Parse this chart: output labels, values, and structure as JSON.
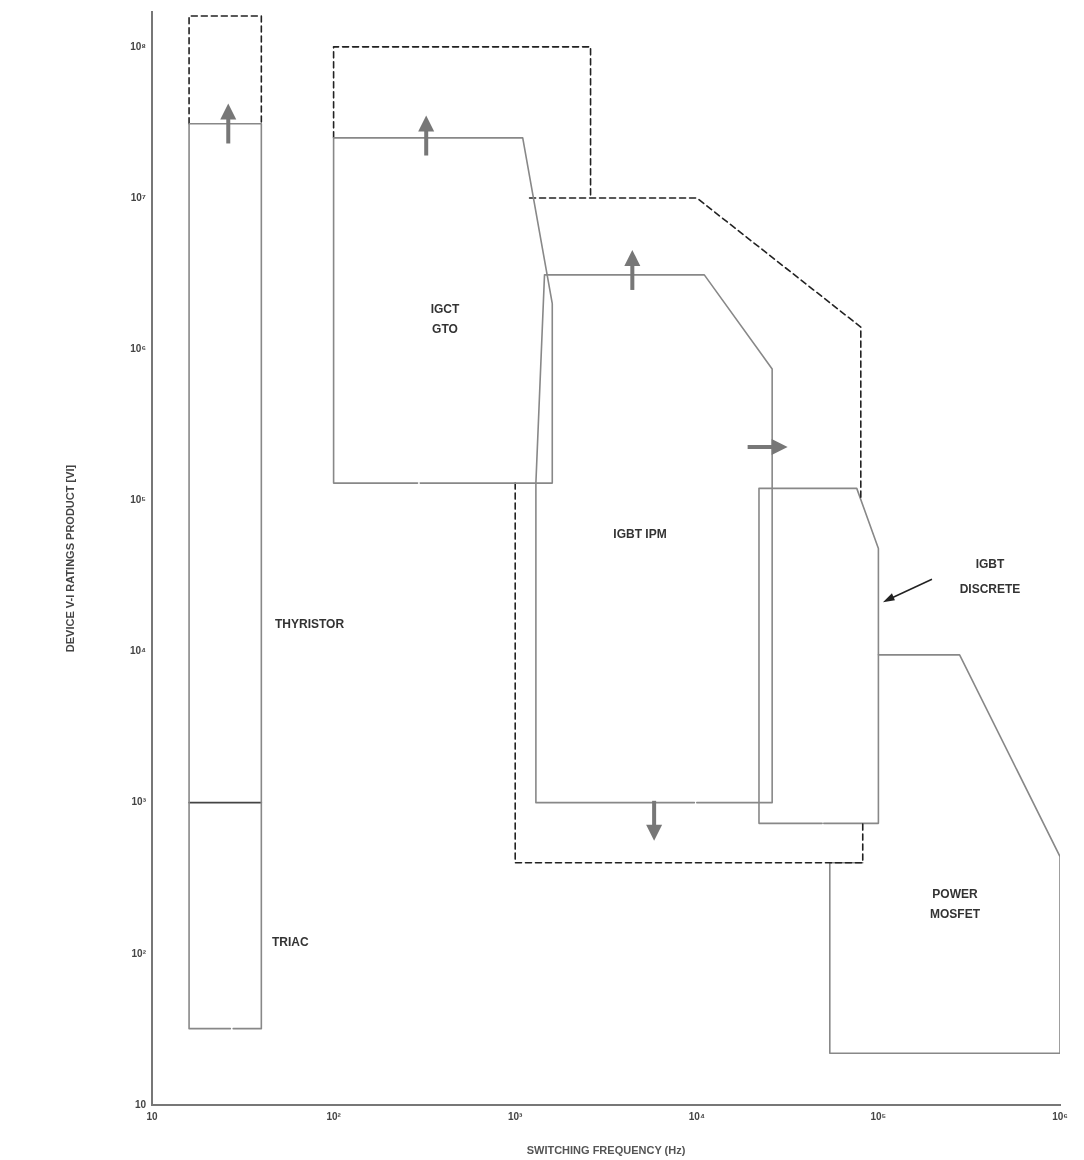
{
  "chart_data": {
    "type": "line",
    "xlabel": "SWITCHING FREQUENCY (Hz)",
    "ylabel": "DEVICE V-I RATINGS PRODUCT [VI]",
    "log": "xy",
    "grid": false,
    "legend": false,
    "marker": "none",
    "xlim": [
      10,
      1000000
    ],
    "ylim": [
      10,
      170000000
    ],
    "xticks": [
      10,
      {
        "value": 100,
        "label": "10²"
      },
      {
        "value": 1000,
        "label": "10³"
      },
      {
        "value": 10000,
        "label": "10⁴"
      },
      {
        "value": 100000,
        "label": "10⁵"
      },
      {
        "value": 1000000,
        "label": "10⁶"
      }
    ],
    "yticks": [
      10,
      {
        "value": 100,
        "label": "10²"
      },
      {
        "value": 1000,
        "label": "10³"
      },
      {
        "value": 10000,
        "label": "10⁴"
      },
      {
        "value": 100000,
        "label": "10⁵"
      },
      {
        "value": 1000000,
        "label": "10⁶"
      },
      {
        "value": 10000000,
        "label": "10⁷"
      },
      {
        "value": 100000000,
        "label": "10⁸"
      }
    ],
    "series": [
      {
        "color": "#888888",
        "line_style": "solid",
        "x": [
          28,
          40,
          40,
          16,
          16,
          27
        ],
        "values": [
          32,
          32,
          31000000,
          31000000,
          32,
          32
        ]
      },
      {
        "color": "#444444",
        "line_style": "solid",
        "x": [
          16,
          40
        ],
        "values": [
          1000,
          1000
        ]
      },
      {
        "color": "#222222",
        "line_style": "dashed",
        "x": [
          16,
          16,
          40,
          40
        ],
        "values": [
          31000000,
          160000000,
          160000000,
          31000000
        ]
      },
      {
        "color": "#888888",
        "line_style": "solid",
        "x": [
          300,
          1600,
          1600,
          1100,
          100,
          100,
          290
        ],
        "values": [
          130000,
          130000,
          2000000,
          25000000,
          25000000,
          130000,
          130000
        ]
      },
      {
        "color": "#222222",
        "line_style": "dashed",
        "x": [
          100,
          100,
          2600,
          2600
        ],
        "values": [
          25000000,
          100000000,
          100000000,
          10000000
        ]
      },
      {
        "color": "#888888",
        "line_style": "solid",
        "x": [
          10000,
          26000,
          26000,
          11000,
          1450,
          1300,
          1300,
          9700
        ],
        "values": [
          1000,
          1000,
          740000,
          3100000,
          3100000,
          130000,
          1000,
          1000
        ]
      },
      {
        "color": "#222222",
        "line_style": "dashed",
        "x": [
          1200,
          10000,
          80000,
          80000
        ],
        "values": [
          10000000,
          10000000,
          1400000,
          100000
        ]
      },
      {
        "color": "#222222",
        "line_style": "dashed",
        "x": [
          1000,
          1000,
          82000,
          82000
        ],
        "values": [
          130000,
          400,
          400,
          730
        ]
      },
      {
        "color": "#888888",
        "line_style": "solid",
        "x": [
          50000,
          100000,
          100000,
          76000,
          22000,
          22000,
          49000
        ],
        "values": [
          730,
          730,
          48000,
          120000,
          120000,
          730,
          730
        ]
      },
      {
        "color": "#888888",
        "line_style": "solid",
        "x": [
          100000,
          280000,
          1000000,
          1000000,
          54000,
          54000,
          82000
        ],
        "values": [
          9500,
          9500,
          440,
          22,
          22,
          400,
          400
        ]
      }
    ],
    "annotations": [
      "THYRISTOR",
      "TRIAC",
      "IGCT",
      "GTO",
      "IGBT IPM",
      "IGBT",
      "DISCRETE",
      "POWER",
      "MOSFET"
    ]
  }
}
